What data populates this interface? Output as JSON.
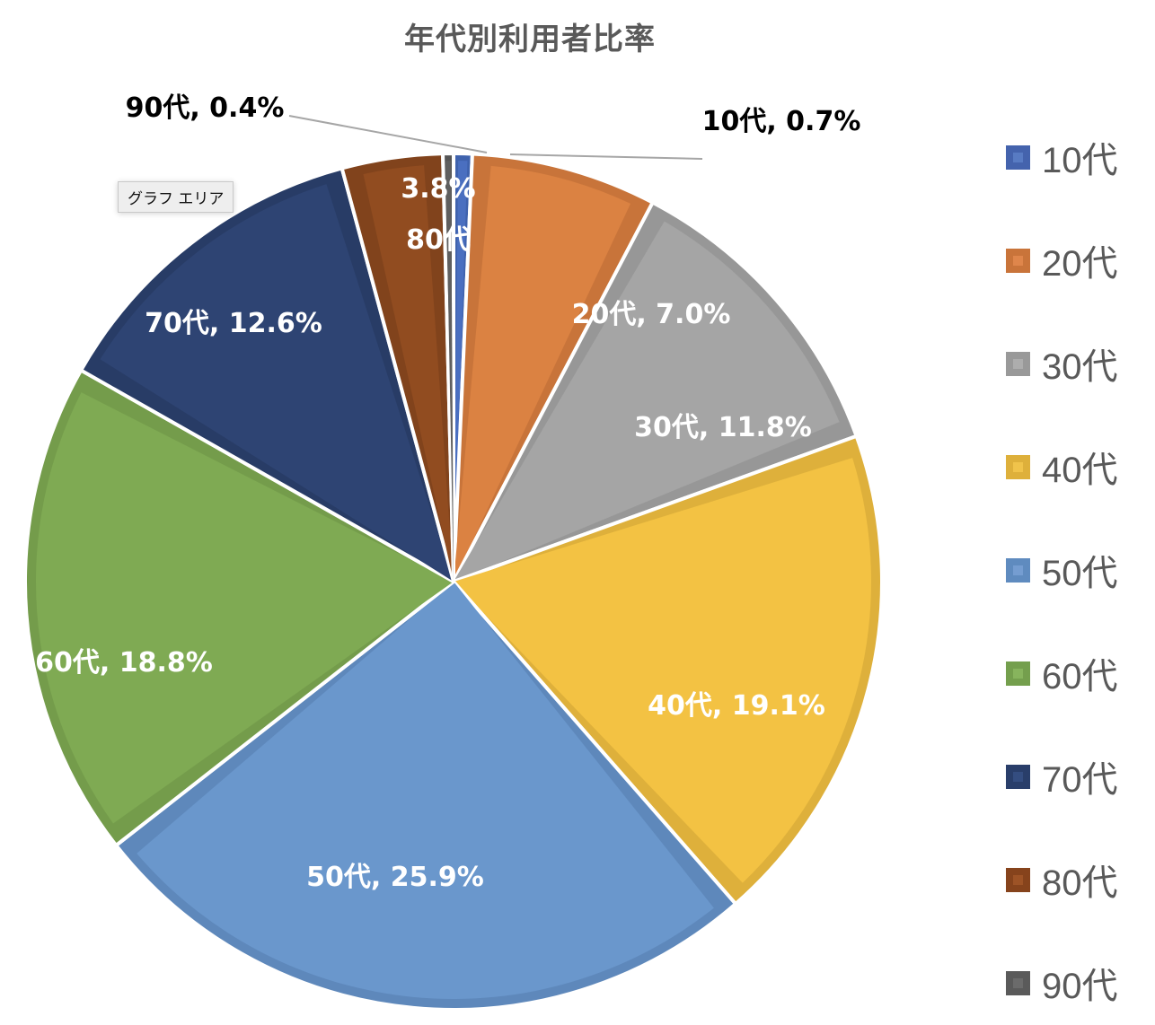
{
  "chart_data": {
    "type": "pie",
    "title": "年代別利用者比率",
    "categories": [
      "10代",
      "20代",
      "30代",
      "40代",
      "50代",
      "60代",
      "70代",
      "80代",
      "90代"
    ],
    "values": [
      0.7,
      7.0,
      11.8,
      19.1,
      25.9,
      18.8,
      12.6,
      3.8,
      0.4
    ],
    "unit": "%",
    "start_angle": "12 o'clock, clockwise",
    "legend_position": "right",
    "data_labels": [
      "10代, 0.7%",
      "20代, 7.0%",
      "30代, 11.8%",
      "40代, 19.1%",
      "50代, 25.9%",
      "60代, 18.8%",
      "70代, 12.6%",
      "3.8%\n80代",
      "90代, 0.4%"
    ],
    "colors": [
      "#4472C4",
      "#ED7D31",
      "#A5A5A5",
      "#FFC000",
      "#5B9BD5",
      "#70AD47",
      "#264478",
      "#9E480E",
      "#636363"
    ]
  },
  "title": "年代別利用者比率",
  "tooltip": "グラフ エリア",
  "slices": [
    {
      "label": "10代",
      "value": 0.7,
      "fill": "#4a6fc0",
      "edge": "#3f62ad",
      "text": "10代, 0.7%",
      "outside": true
    },
    {
      "label": "20代",
      "value": 7.0,
      "fill": "#db8242",
      "edge": "#c8743a",
      "text": "20代, 7.0%"
    },
    {
      "label": "30代",
      "value": 11.8,
      "fill": "#a5a5a5",
      "edge": "#979797",
      "text": "30代, 11.8%"
    },
    {
      "label": "40代",
      "value": 19.1,
      "fill": "#f3c243",
      "edge": "#deb03b",
      "text": "40代, 19.1%"
    },
    {
      "label": "50代",
      "value": 25.9,
      "fill": "#6a97cc",
      "edge": "#5e88bb",
      "text": "50代, 25.9%"
    },
    {
      "label": "60代",
      "value": 18.8,
      "fill": "#7faa53",
      "edge": "#749c4b",
      "text": "60代, 18.8%"
    },
    {
      "label": "70代",
      "value": 12.6,
      "fill": "#2e4473",
      "edge": "#283c66",
      "text": "70代, 12.6%"
    },
    {
      "label": "80代",
      "value": 3.8,
      "fill": "#914c20",
      "edge": "#81431c",
      "text_line1": "3.8%",
      "text_line2": "80代"
    },
    {
      "label": "90代",
      "value": 0.4,
      "fill": "#5f5f5f",
      "edge": "#555555",
      "text": "90代, 0.4%",
      "outside": true
    }
  ],
  "legend": [
    {
      "label": "10代",
      "color": "#4463ad",
      "inner": "#6a8fd6"
    },
    {
      "label": "20代",
      "color": "#c9743a",
      "inner": "#f0955a"
    },
    {
      "label": "30代",
      "color": "#999999",
      "inner": "#bdbdbd"
    },
    {
      "label": "40代",
      "color": "#deb03b",
      "inner": "#ffd45a"
    },
    {
      "label": "50代",
      "color": "#5f8bbf",
      "inner": "#86ade0"
    },
    {
      "label": "60代",
      "color": "#749f4d",
      "inner": "#97c46b"
    },
    {
      "label": "70代",
      "color": "#293e6a",
      "inner": "#3e5a92"
    },
    {
      "label": "80代",
      "color": "#86431c",
      "inner": "#b0612f"
    },
    {
      "label": "90代",
      "color": "#5a5a5a",
      "inner": "#7a7a7a"
    }
  ]
}
